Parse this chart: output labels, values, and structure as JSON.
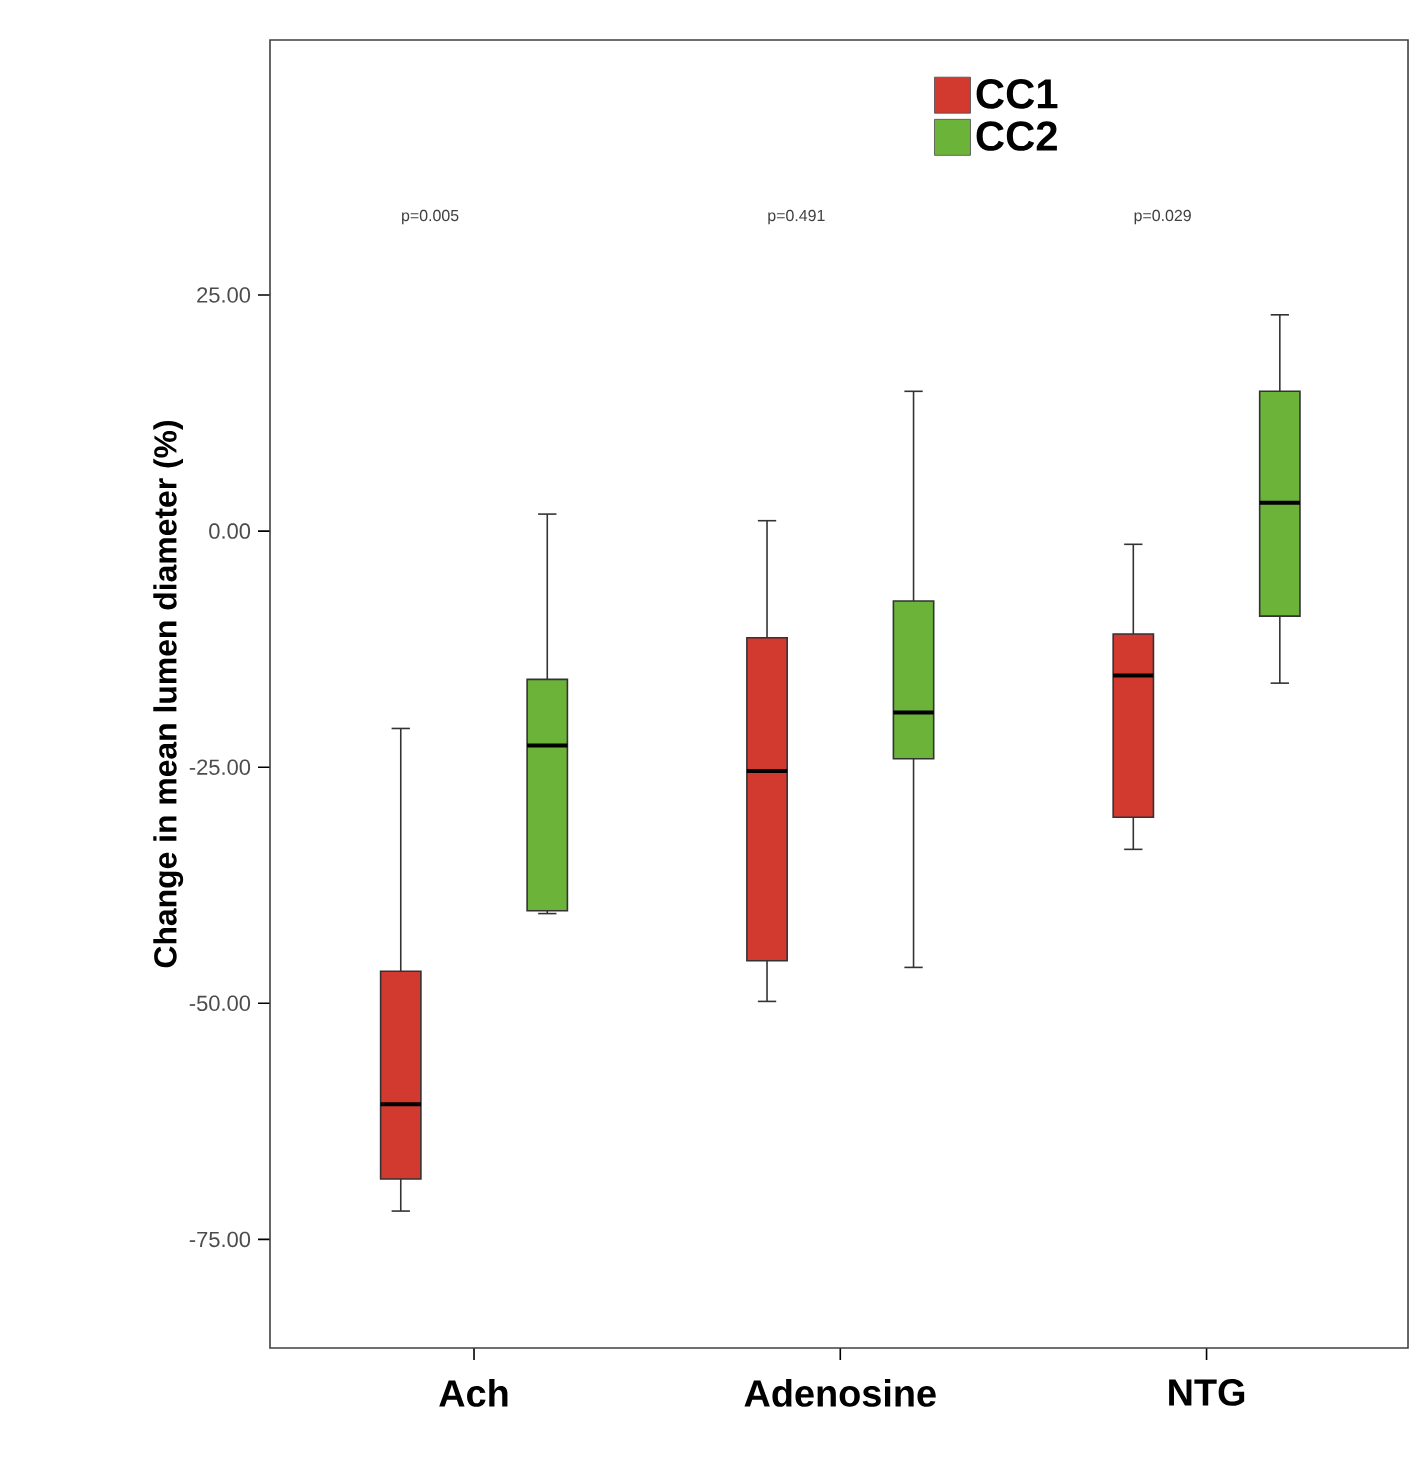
{
  "chart_data": {
    "type": "box",
    "ylabel": "Change in mean lumen diameter (%)",
    "categories": [
      "Ach",
      "Adenosine",
      "NTG"
    ],
    "ylim": [
      -86.5,
      52
    ],
    "yticks": [
      {
        "value": 25,
        "label": "25.00"
      },
      {
        "value": 0,
        "label": "0.00"
      },
      {
        "value": -25,
        "label": "-25.00"
      },
      {
        "value": -50,
        "label": "-50.00"
      },
      {
        "value": -75,
        "label": "-75.00"
      }
    ],
    "series": [
      {
        "name": "CC1",
        "color": "#d23a30",
        "boxes": [
          {
            "low": -72.0,
            "q1": -68.6,
            "median": -60.7,
            "q3": -46.6,
            "high": -20.9
          },
          {
            "low": -49.8,
            "q1": -45.5,
            "median": -25.4,
            "q3": -11.3,
            "high": 1.1
          },
          {
            "low": -33.7,
            "q1": -30.3,
            "median": -15.3,
            "q3": -10.9,
            "high": -1.4
          }
        ]
      },
      {
        "name": "CC2",
        "color": "#6cb33a",
        "boxes": [
          {
            "low": -40.5,
            "q1": -40.2,
            "median": -22.7,
            "q3": -15.7,
            "high": 1.8
          },
          {
            "low": -46.2,
            "q1": -24.1,
            "median": -19.2,
            "q3": -7.4,
            "high": 14.8
          },
          {
            "low": -16.1,
            "q1": -9.0,
            "median": 3.0,
            "q3": 14.8,
            "high": 22.9
          }
        ]
      }
    ],
    "annotations": [
      "p=0.005",
      "p=0.491",
      "p=0.029"
    ],
    "legend": "top"
  }
}
